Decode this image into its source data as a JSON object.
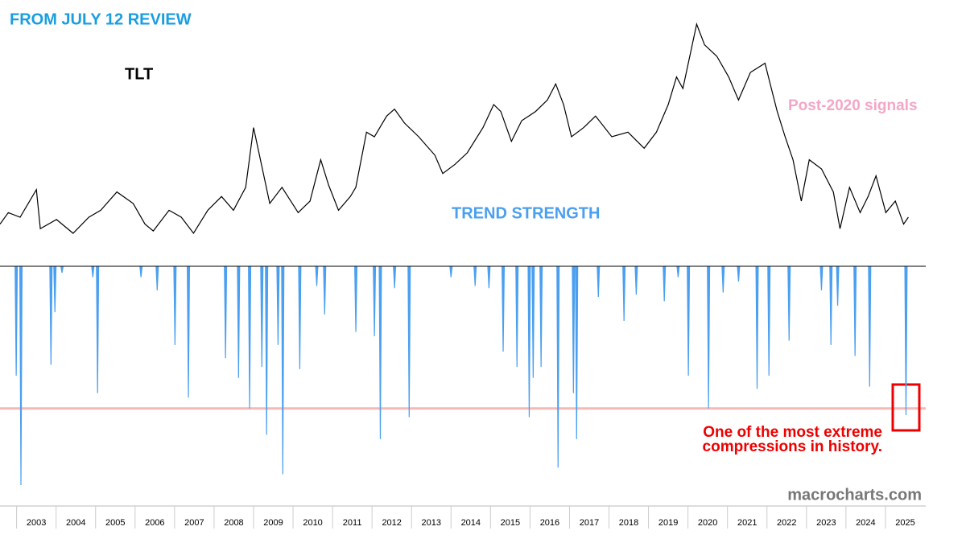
{
  "header": "FROM JULY 12 REVIEW",
  "chart_data": [
    {
      "type": "line",
      "title": "TLT",
      "annotation": "Post-2020 signals",
      "color": "#000000",
      "xlim": [
        2002.6,
        2026
      ],
      "x": [
        2002.58,
        2002.79,
        2003.09,
        2003.5,
        2003.6,
        2004.01,
        2004.43,
        2004.83,
        2005.13,
        2005.54,
        2005.95,
        2006.25,
        2006.46,
        2006.86,
        2007.17,
        2007.48,
        2007.84,
        2008.19,
        2008.49,
        2008.8,
        2009.0,
        2009.15,
        2009.41,
        2009.72,
        2010.13,
        2010.43,
        2010.7,
        2010.9,
        2011.15,
        2011.45,
        2011.59,
        2011.86,
        2012.06,
        2012.37,
        2012.57,
        2012.82,
        2013.18,
        2013.59,
        2013.79,
        2014.1,
        2014.41,
        2014.81,
        2015.08,
        2015.26,
        2015.53,
        2015.79,
        2016.14,
        2016.44,
        2016.65,
        2016.85,
        2017.05,
        2017.36,
        2017.66,
        2018.07,
        2018.48,
        2018.89,
        2019.2,
        2019.5,
        2019.71,
        2019.87,
        2020.22,
        2020.42,
        2020.73,
        2021.03,
        2021.28,
        2021.58,
        2021.95,
        2022.11,
        2022.26,
        2022.46,
        2022.66,
        2022.87,
        2023.07,
        2023.38,
        2023.68,
        2023.85,
        2024.09,
        2024.36,
        2024.56,
        2024.76,
        2025.01,
        2025.25,
        2025.46,
        2025.58
      ],
      "values": [
        84,
        89,
        87,
        99,
        82,
        86,
        80,
        87,
        90,
        98,
        93,
        84,
        81,
        90,
        87,
        80,
        90,
        96,
        90,
        100,
        126,
        114,
        93,
        100,
        89,
        94,
        112,
        101,
        90,
        96,
        100,
        124,
        122,
        131,
        134,
        128,
        122,
        114,
        106,
        110,
        115,
        126,
        136,
        133,
        120,
        129,
        133,
        138,
        145,
        136,
        122,
        126,
        131,
        122,
        124,
        117,
        124,
        136,
        148,
        143,
        171,
        162,
        157,
        148,
        138,
        150,
        154,
        143,
        133,
        122,
        112,
        94,
        112,
        108,
        98,
        82,
        100,
        89,
        96,
        105,
        89,
        94,
        84,
        87
      ]
    },
    {
      "type": "bar",
      "title": "TREND STRENGTH",
      "color": "#4a9ff0",
      "annotations": [
        "One of the most extreme",
        "compressions in history."
      ],
      "source": "macrocharts.com",
      "threshold": -65,
      "threshold_color": "#f7b8b8",
      "xlim": [
        2002.6,
        2026
      ],
      "xticks": [
        2003,
        2004,
        2005,
        2006,
        2007,
        2008,
        2009,
        2010,
        2011,
        2012,
        2013,
        2014,
        2015,
        2016,
        2017,
        2018,
        2019,
        2020,
        2021,
        2022,
        2023,
        2024,
        2025
      ],
      "x": [
        2002.99,
        2003.11,
        2003.87,
        2003.97,
        2004.15,
        2004.93,
        2005.05,
        2006.15,
        2006.56,
        2007.01,
        2007.35,
        2008.29,
        2008.62,
        2008.9,
        2009.21,
        2009.33,
        2009.62,
        2009.74,
        2010.17,
        2010.6,
        2010.8,
        2011.59,
        2012.06,
        2012.21,
        2012.57,
        2012.94,
        2014.0,
        2014.61,
        2014.96,
        2015.32,
        2015.67,
        2015.98,
        2016.08,
        2016.28,
        2016.71,
        2017.1,
        2017.18,
        2017.73,
        2018.38,
        2018.69,
        2019.4,
        2019.75,
        2020.01,
        2020.52,
        2020.89,
        2021.28,
        2021.75,
        2022.05,
        2022.56,
        2023.38,
        2023.62,
        2023.79,
        2024.23,
        2024.6,
        2025.52
      ],
      "values": [
        -50,
        -100,
        -45,
        -21,
        -3,
        -5,
        -58,
        -5,
        -11,
        -36,
        -60,
        -42,
        -51,
        -65,
        -46,
        -77,
        -36,
        -95,
        -47,
        -9,
        -22,
        -30,
        -32,
        -79,
        -10,
        -69,
        -5,
        -9,
        -10,
        -39,
        -46,
        -69,
        -51,
        -46,
        -92,
        -58,
        -79,
        -14,
        -25,
        -13,
        -16,
        -5,
        -50,
        -65,
        -12,
        -7,
        -56,
        -50,
        -34,
        -11,
        -36,
        -18,
        -41,
        -55,
        -68
      ]
    }
  ]
}
